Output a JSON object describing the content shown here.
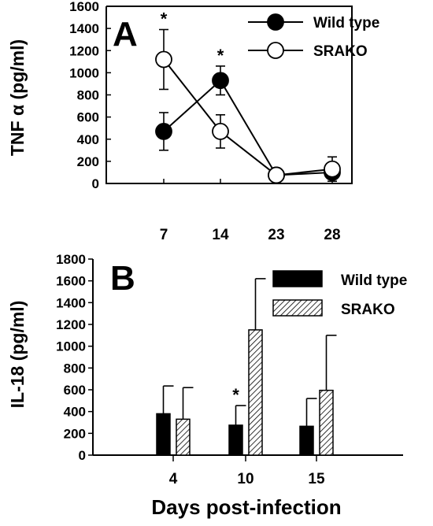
{
  "chart_data": [
    {
      "panel": "A",
      "type": "line",
      "ylabel": "TNF α (pg/ml)",
      "ylim": [
        0,
        1600
      ],
      "yticks": [
        0,
        200,
        400,
        600,
        800,
        1000,
        1200,
        1400,
        1600
      ],
      "categories": [
        "7",
        "14",
        "23",
        "28"
      ],
      "series": [
        {
          "name": "Wild type",
          "values": [
            470,
            930,
            75,
            100
          ],
          "errors": [
            170,
            130,
            20,
            60
          ],
          "marker": "filled"
        },
        {
          "name": "SRAKO",
          "values": [
            1120,
            470,
            75,
            130
          ],
          "errors": [
            270,
            150,
            20,
            110
          ],
          "marker": "open"
        }
      ],
      "annotations": [
        {
          "text": "*",
          "category": "7"
        },
        {
          "text": "*",
          "category": "14"
        }
      ],
      "legend": "top-right"
    },
    {
      "panel": "B",
      "type": "bar",
      "ylabel": "IL-18 (pg/ml)",
      "xlabel": "Days post-infection",
      "ylim": [
        0,
        1800
      ],
      "yticks": [
        0,
        200,
        400,
        600,
        800,
        1000,
        1200,
        1400,
        1600,
        1800
      ],
      "categories": [
        "4",
        "10",
        "15"
      ],
      "series": [
        {
          "name": "Wild type",
          "values": [
            380,
            275,
            265
          ],
          "errors": [
            255,
            180,
            255
          ],
          "fill": "solid"
        },
        {
          "name": "SRAKO",
          "values": [
            330,
            1150,
            595
          ],
          "errors": [
            290,
            470,
            505
          ],
          "fill": "hatched"
        }
      ],
      "annotations": [
        {
          "text": "*",
          "category": "10"
        }
      ],
      "legend": "top-right"
    }
  ],
  "colors": {
    "foreground": "#000000",
    "background": "#ffffff"
  }
}
